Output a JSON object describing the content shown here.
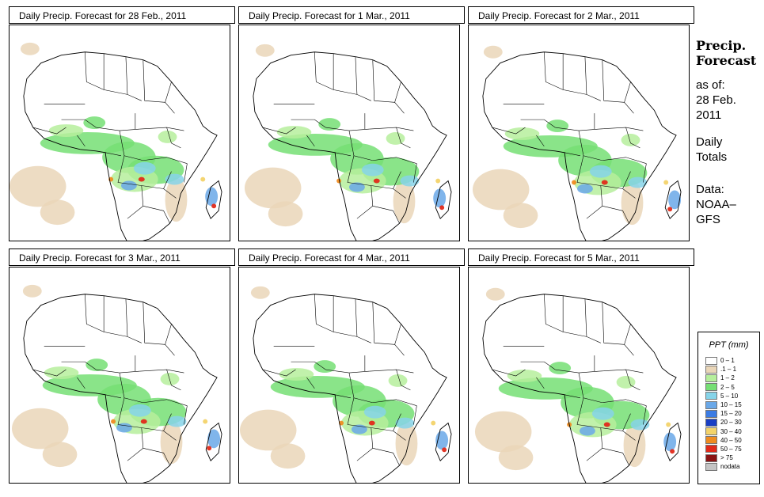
{
  "panels": [
    {
      "title": "Daily Precip. Forecast for  28 Feb., 2011"
    },
    {
      "title": "Daily Precip. Forecast for  1 Mar., 2011"
    },
    {
      "title": "Daily Precip. Forecast for  2 Mar., 2011"
    },
    {
      "title": "Daily Precip. Forecast for  3 Mar., 2011"
    },
    {
      "title": "Daily Precip. Forecast for  4 Mar., 2011"
    },
    {
      "title": "Daily Precip. Forecast for  5 Mar., 2011"
    }
  ],
  "sidebar": {
    "title_line1": "Precip.",
    "title_line2": "Forecast",
    "asof_label": "as of:",
    "date_line1": "28 Feb.",
    "date_line2": "2011",
    "totals_line1": "Daily",
    "totals_line2": "Totals",
    "data_label": "Data:",
    "source_line1": "NOAA–",
    "source_line2": "GFS"
  },
  "legend": {
    "title": "PPT (mm)",
    "items": [
      {
        "label": "0 – 1",
        "color": "#ffffff"
      },
      {
        "label": ".1 – 1",
        "color": "#ead6b8"
      },
      {
        "label": "1 – 2",
        "color": "#b6ef9c"
      },
      {
        "label": "2 – 5",
        "color": "#76df74"
      },
      {
        "label": "5 – 10",
        "color": "#86d4e9"
      },
      {
        "label": "10 – 15",
        "color": "#6aa8e8"
      },
      {
        "label": "15 – 20",
        "color": "#3c7ce4"
      },
      {
        "label": "20 – 30",
        "color": "#1a3fc4"
      },
      {
        "label": "30 – 40",
        "color": "#f3d36a"
      },
      {
        "label": "40 – 50",
        "color": "#ef8c21"
      },
      {
        "label": "50 – 75",
        "color": "#e12a1a"
      },
      {
        "label": "> 75",
        "color": "#8a1414"
      },
      {
        "label": "nodata",
        "color": "#c4c4c4"
      }
    ]
  }
}
